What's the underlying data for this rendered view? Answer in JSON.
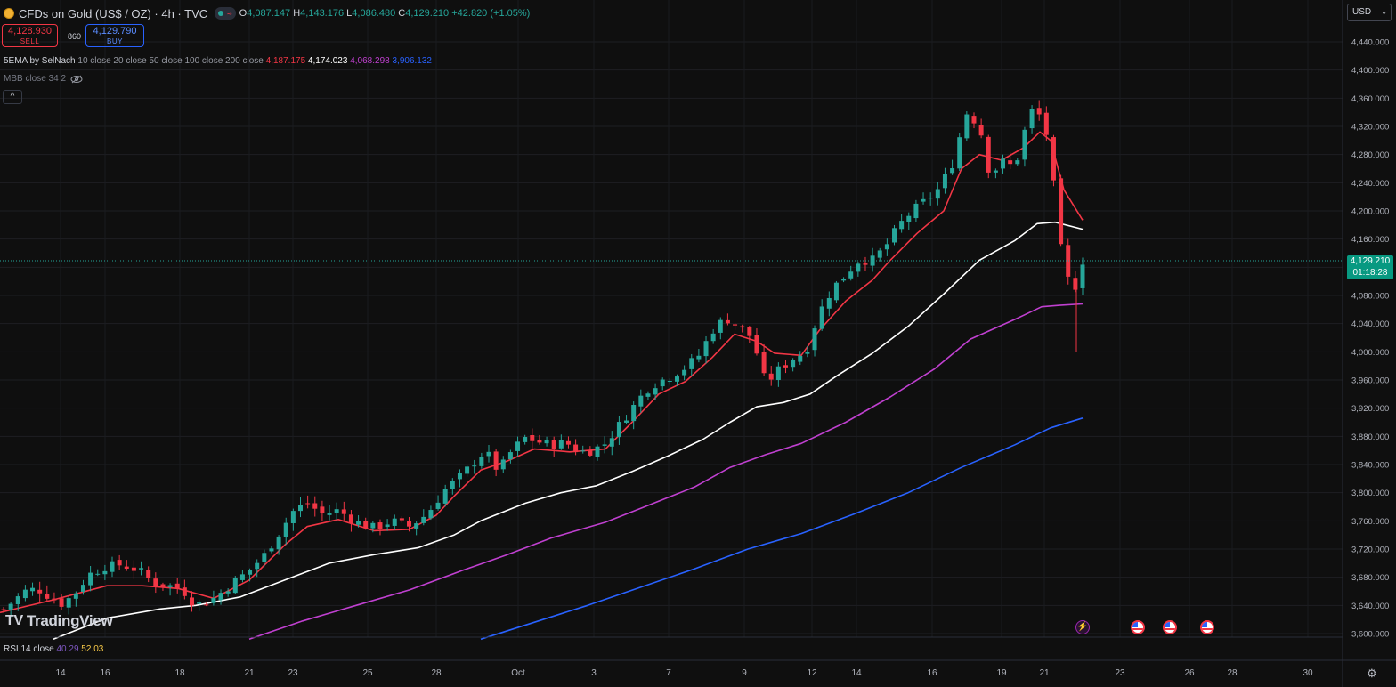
{
  "header": {
    "title": "CFDs on Gold (US$ / OZ) · 4h · TVC",
    "logo_icon": "gold-coin-icon",
    "ohlc": [
      {
        "k": "O",
        "v": "4,087.147"
      },
      {
        "k": "H",
        "v": "4,143.176"
      },
      {
        "k": "L",
        "v": "4,086.480"
      },
      {
        "k": "C",
        "v": "4,129.210"
      },
      {
        "k": "",
        "v": "+42.820 (+1.05%)"
      }
    ],
    "market_status_icons": [
      "market-open-dot-icon",
      "wave-icon"
    ],
    "market_wave": "≈"
  },
  "trade": {
    "sell_price": "4,128.930",
    "sell_label": "SELL",
    "spread": "860",
    "buy_price": "4,129.790",
    "buy_label": "BUY"
  },
  "indicators": {
    "ema": {
      "label": "5EMA by SelNach",
      "args": "10 close 20 close 50 close 100 close 200 close",
      "values": [
        {
          "v": "4,187.175",
          "color": "#f23645"
        },
        {
          "v": "4,174.023",
          "color": "#ffffff"
        },
        {
          "v": "4,068.298",
          "color": "#c040d0"
        },
        {
          "v": "3,906.132",
          "color": "#2962ff"
        }
      ]
    },
    "mbb": {
      "label": "MBB close 34 2",
      "icon": "eye-hidden-icon"
    },
    "collapse": "^"
  },
  "currency": {
    "label": "USD",
    "chevron": "⌄"
  },
  "last_price": {
    "price": "4,129.210",
    "countdown": "01:18:28"
  },
  "price_axis": [
    "4,440.000",
    "4,400.000",
    "4,360.000",
    "4,320.000",
    "4,280.000",
    "4,240.000",
    "4,200.000",
    "4,160.000",
    "4,120.000",
    "4,080.000",
    "4,040.000",
    "4,000.000",
    "3,960.000",
    "3,920.000",
    "3,880.000",
    "3,840.000",
    "3,800.000",
    "3,760.000",
    "3,720.000",
    "3,680.000",
    "3,640.000",
    "3,600.000"
  ],
  "time_axis": [
    "14",
    "16",
    "18",
    "21",
    "23",
    "25",
    "28",
    "Oct",
    "3",
    "7",
    "9",
    "12",
    "14",
    "16",
    "19",
    "21",
    "23",
    "26",
    "28",
    "30"
  ],
  "watermark": {
    "icon": "tradingview-logo-icon",
    "text": "TradingView",
    "logo": "TV"
  },
  "rsi": {
    "label": "RSI 14 close",
    "value1": "40.29",
    "value2": "52.03"
  },
  "events": [
    "lightning-event-icon",
    "us-flag-icon",
    "us-flag-icon",
    "us-flag-icon"
  ],
  "chart_data": {
    "type": "candlestick",
    "title": "CFDs on Gold (US$ / OZ) · 4h · TVC",
    "ylim": [
      3590,
      4460
    ],
    "xlabel": "",
    "ylabel": "",
    "close_path": [
      [
        0,
        3630
      ],
      [
        14,
        3645
      ],
      [
        28,
        3660
      ],
      [
        42,
        3664
      ],
      [
        56,
        3652
      ],
      [
        70,
        3642
      ],
      [
        84,
        3657
      ],
      [
        100,
        3684
      ],
      [
        118,
        3695
      ],
      [
        136,
        3698
      ],
      [
        156,
        3690
      ],
      [
        172,
        3672
      ],
      [
        190,
        3668
      ],
      [
        205,
        3662
      ],
      [
        220,
        3640
      ],
      [
        240,
        3650
      ],
      [
        260,
        3670
      ],
      [
        280,
        3690
      ],
      [
        296,
        3710
      ],
      [
        312,
        3740
      ],
      [
        330,
        3775
      ],
      [
        345,
        3785
      ],
      [
        362,
        3770
      ],
      [
        380,
        3775
      ],
      [
        400,
        3758
      ],
      [
        420,
        3750
      ],
      [
        440,
        3760
      ],
      [
        460,
        3752
      ],
      [
        480,
        3770
      ],
      [
        500,
        3805
      ],
      [
        515,
        3820
      ],
      [
        530,
        3840
      ],
      [
        545,
        3860
      ],
      [
        560,
        3830
      ],
      [
        575,
        3860
      ],
      [
        590,
        3878
      ],
      [
        605,
        3872
      ],
      [
        620,
        3868
      ],
      [
        635,
        3872
      ],
      [
        650,
        3858
      ],
      [
        665,
        3860
      ],
      [
        680,
        3870
      ],
      [
        695,
        3895
      ],
      [
        710,
        3920
      ],
      [
        725,
        3945
      ],
      [
        740,
        3958
      ],
      [
        755,
        3966
      ],
      [
        770,
        3978
      ],
      [
        785,
        3995
      ],
      [
        800,
        4030
      ],
      [
        815,
        4048
      ],
      [
        830,
        4035
      ],
      [
        845,
        4020
      ],
      [
        860,
        3955
      ],
      [
        875,
        3975
      ],
      [
        890,
        3990
      ],
      [
        905,
        4000
      ],
      [
        920,
        4055
      ],
      [
        935,
        4090
      ],
      [
        950,
        4110
      ],
      [
        965,
        4130
      ],
      [
        980,
        4130
      ],
      [
        995,
        4150
      ],
      [
        1010,
        4180
      ],
      [
        1025,
        4200
      ],
      [
        1040,
        4215
      ],
      [
        1055,
        4232
      ],
      [
        1070,
        4268
      ],
      [
        1085,
        4340
      ],
      [
        1100,
        4322
      ],
      [
        1112,
        4250
      ],
      [
        1125,
        4270
      ],
      [
        1140,
        4262
      ],
      [
        1150,
        4310
      ],
      [
        1160,
        4345
      ],
      [
        1172,
        4330
      ],
      [
        1180,
        4280
      ],
      [
        1188,
        4180
      ],
      [
        1196,
        4105
      ],
      [
        1204,
        4100
      ],
      [
        1212,
        4087
      ],
      [
        1216,
        4129
      ]
    ],
    "candles": {
      "start_x": 4,
      "end_x": 1216,
      "count": 150,
      "wick": 0.55
    },
    "emas": [
      {
        "period": 10,
        "color": "#f23645",
        "points": [
          [
            0,
            3630
          ],
          [
            60,
            3648
          ],
          [
            120,
            3668
          ],
          [
            160,
            3668
          ],
          [
            200,
            3664
          ],
          [
            240,
            3650
          ],
          [
            280,
            3676
          ],
          [
            320,
            3726
          ],
          [
            345,
            3752
          ],
          [
            380,
            3762
          ],
          [
            420,
            3746
          ],
          [
            460,
            3748
          ],
          [
            490,
            3768
          ],
          [
            510,
            3795
          ],
          [
            540,
            3832
          ],
          [
            570,
            3845
          ],
          [
            600,
            3862
          ],
          [
            640,
            3858
          ],
          [
            680,
            3862
          ],
          [
            710,
            3900
          ],
          [
            740,
            3940
          ],
          [
            770,
            3958
          ],
          [
            800,
            3992
          ],
          [
            825,
            4025
          ],
          [
            850,
            4015
          ],
          [
            870,
            3998
          ],
          [
            900,
            3995
          ],
          [
            920,
            4030
          ],
          [
            950,
            4072
          ],
          [
            980,
            4102
          ],
          [
            1000,
            4130
          ],
          [
            1030,
            4168
          ],
          [
            1060,
            4200
          ],
          [
            1080,
            4260
          ],
          [
            1100,
            4280
          ],
          [
            1125,
            4272
          ],
          [
            1150,
            4290
          ],
          [
            1168,
            4312
          ],
          [
            1180,
            4300
          ],
          [
            1195,
            4230
          ],
          [
            1216,
            4187
          ]
        ]
      },
      {
        "period": 20,
        "color": "#ffffff",
        "points": [
          [
            60,
            3592
          ],
          [
            120,
            3622
          ],
          [
            180,
            3635
          ],
          [
            220,
            3640
          ],
          [
            270,
            3652
          ],
          [
            320,
            3676
          ],
          [
            370,
            3700
          ],
          [
            420,
            3712
          ],
          [
            470,
            3722
          ],
          [
            510,
            3740
          ],
          [
            540,
            3760
          ],
          [
            590,
            3785
          ],
          [
            630,
            3800
          ],
          [
            670,
            3810
          ],
          [
            710,
            3830
          ],
          [
            750,
            3852
          ],
          [
            790,
            3876
          ],
          [
            820,
            3900
          ],
          [
            850,
            3922
          ],
          [
            880,
            3928
          ],
          [
            910,
            3940
          ],
          [
            940,
            3966
          ],
          [
            980,
            3998
          ],
          [
            1020,
            4036
          ],
          [
            1060,
            4082
          ],
          [
            1100,
            4130
          ],
          [
            1140,
            4158
          ],
          [
            1165,
            4182
          ],
          [
            1185,
            4184
          ],
          [
            1216,
            4174
          ]
        ]
      },
      {
        "period": 50,
        "color": "#c040d0",
        "points": [
          [
            280,
            3592
          ],
          [
            340,
            3618
          ],
          [
            400,
            3640
          ],
          [
            460,
            3662
          ],
          [
            520,
            3690
          ],
          [
            570,
            3712
          ],
          [
            620,
            3736
          ],
          [
            680,
            3758
          ],
          [
            720,
            3778
          ],
          [
            780,
            3808
          ],
          [
            820,
            3836
          ],
          [
            860,
            3854
          ],
          [
            900,
            3870
          ],
          [
            950,
            3900
          ],
          [
            1000,
            3936
          ],
          [
            1050,
            3976
          ],
          [
            1090,
            4018
          ],
          [
            1140,
            4046
          ],
          [
            1170,
            4064
          ],
          [
            1190,
            4066
          ],
          [
            1216,
            4068
          ]
        ]
      },
      {
        "period": 100,
        "color": "#2962ff",
        "points": [
          [
            540,
            3592
          ],
          [
            600,
            3616
          ],
          [
            660,
            3640
          ],
          [
            720,
            3666
          ],
          [
            780,
            3692
          ],
          [
            840,
            3720
          ],
          [
            900,
            3742
          ],
          [
            960,
            3770
          ],
          [
            1020,
            3800
          ],
          [
            1080,
            3836
          ],
          [
            1140,
            3868
          ],
          [
            1180,
            3892
          ],
          [
            1216,
            3906
          ]
        ]
      }
    ]
  }
}
